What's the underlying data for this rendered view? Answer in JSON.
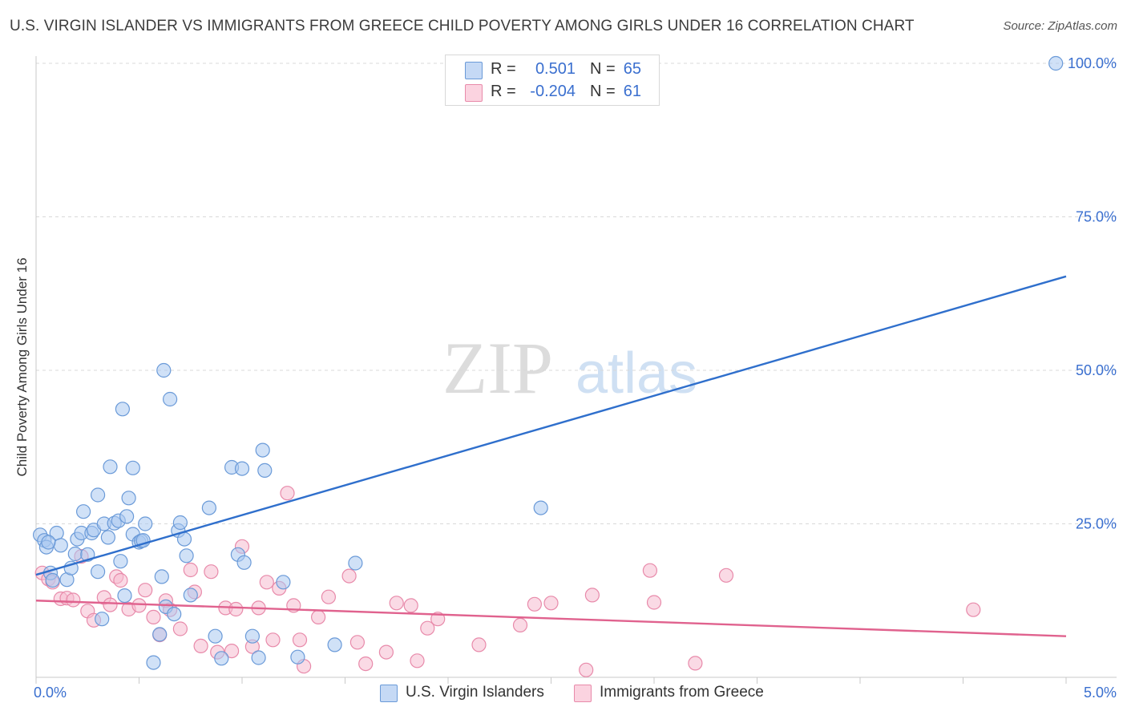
{
  "title": "U.S. VIRGIN ISLANDER VS IMMIGRANTS FROM GREECE CHILD POVERTY AMONG GIRLS UNDER 16 CORRELATION CHART",
  "source": "Source: ZipAtlas.com",
  "watermark": {
    "zip": "ZIP",
    "atlas": "atlas"
  },
  "colors": {
    "blue_fill": "#aac8f0",
    "blue_stroke": "#6a9ad8",
    "blue_line": "#2f6fcc",
    "pink_fill": "#f6bcd0",
    "pink_stroke": "#e88aaa",
    "pink_line": "#e0628e",
    "grid": "#d9d9d9",
    "axis_text": "#3a6fcf"
  },
  "legend": {
    "rows": [
      {
        "r_label": "R =",
        "r_value": "0.501",
        "n_label": "N =",
        "n_value": "65"
      },
      {
        "r_label": "R =",
        "r_value": "-0.204",
        "n_label": "N =",
        "n_value": "61"
      }
    ]
  },
  "bottom_legend": {
    "series1": "U.S. Virgin Islanders",
    "series2": "Immigrants from Greece"
  },
  "chart_data": {
    "type": "scatter",
    "title": "U.S. VIRGIN ISLANDER VS IMMIGRANTS FROM GREECE CHILD POVERTY AMONG GIRLS UNDER 16 CORRELATION CHART",
    "xlabel": "",
    "ylabel": "Child Poverty Among Girls Under 16",
    "xlim": [
      0,
      5
    ],
    "ylim": [
      0,
      102
    ],
    "x_tick_labels": [
      "0.0%",
      "5.0%"
    ],
    "y_ticks": [
      25,
      50,
      75,
      100
    ],
    "y_tick_labels": [
      "25.0%",
      "50.0%",
      "75.0%",
      "100.0%"
    ],
    "series": [
      {
        "name": "U.S. Virgin Islanders",
        "color": "blue",
        "trend": {
          "x": [
            0,
            5
          ],
          "y": [
            16.7,
            65.3
          ]
        },
        "points": [
          [
            0.02,
            23.2
          ],
          [
            0.04,
            22.3
          ],
          [
            0.05,
            21.2
          ],
          [
            0.07,
            17.0
          ],
          [
            0.08,
            15.8
          ],
          [
            0.1,
            23.5
          ],
          [
            0.12,
            21.5
          ],
          [
            0.15,
            15.9
          ],
          [
            0.17,
            17.8
          ],
          [
            0.19,
            20.1
          ],
          [
            0.2,
            22.5
          ],
          [
            0.22,
            23.5
          ],
          [
            0.23,
            27.0
          ],
          [
            0.25,
            20.0
          ],
          [
            0.27,
            23.5
          ],
          [
            0.28,
            24.0
          ],
          [
            0.3,
            29.7
          ],
          [
            0.3,
            17.2
          ],
          [
            0.32,
            9.5
          ],
          [
            0.33,
            25.0
          ],
          [
            0.35,
            22.8
          ],
          [
            0.36,
            34.3
          ],
          [
            0.38,
            25.1
          ],
          [
            0.4,
            25.5
          ],
          [
            0.41,
            18.9
          ],
          [
            0.42,
            43.7
          ],
          [
            0.43,
            13.3
          ],
          [
            0.44,
            26.2
          ],
          [
            0.45,
            29.2
          ],
          [
            0.47,
            34.1
          ],
          [
            0.47,
            23.3
          ],
          [
            0.5,
            22.0
          ],
          [
            0.51,
            22.2
          ],
          [
            0.53,
            25.0
          ],
          [
            0.57,
            2.4
          ],
          [
            0.6,
            7.0
          ],
          [
            0.61,
            16.4
          ],
          [
            0.62,
            50.0
          ],
          [
            0.63,
            11.5
          ],
          [
            0.65,
            45.3
          ],
          [
            0.67,
            10.3
          ],
          [
            0.69,
            23.9
          ],
          [
            0.7,
            25.2
          ],
          [
            0.72,
            22.5
          ],
          [
            0.73,
            19.8
          ],
          [
            0.75,
            13.4
          ],
          [
            0.84,
            27.6
          ],
          [
            0.87,
            6.7
          ],
          [
            0.9,
            3.1
          ],
          [
            0.95,
            34.2
          ],
          [
            0.98,
            20.0
          ],
          [
            1.0,
            34.0
          ],
          [
            1.01,
            18.7
          ],
          [
            1.05,
            6.7
          ],
          [
            1.08,
            3.2
          ],
          [
            1.1,
            37.0
          ],
          [
            1.11,
            33.7
          ],
          [
            1.2,
            15.5
          ],
          [
            1.27,
            3.3
          ],
          [
            1.45,
            5.3
          ],
          [
            1.55,
            18.6
          ],
          [
            2.45,
            27.6
          ],
          [
            4.95,
            100.0
          ],
          [
            0.06,
            22.0
          ],
          [
            0.52,
            22.3
          ]
        ]
      },
      {
        "name": "Immigrants from Greece",
        "color": "pink",
        "trend": {
          "x": [
            0,
            5
          ],
          "y": [
            12.5,
            6.7
          ]
        },
        "points": [
          [
            0.03,
            17.0
          ],
          [
            0.06,
            16.0
          ],
          [
            0.08,
            15.5
          ],
          [
            0.12,
            12.8
          ],
          [
            0.15,
            12.9
          ],
          [
            0.18,
            12.6
          ],
          [
            0.22,
            19.7
          ],
          [
            0.25,
            10.8
          ],
          [
            0.28,
            9.3
          ],
          [
            0.33,
            13.0
          ],
          [
            0.36,
            11.8
          ],
          [
            0.39,
            16.4
          ],
          [
            0.41,
            15.8
          ],
          [
            0.45,
            11.1
          ],
          [
            0.5,
            11.7
          ],
          [
            0.53,
            14.2
          ],
          [
            0.57,
            9.8
          ],
          [
            0.6,
            6.9
          ],
          [
            0.63,
            12.5
          ],
          [
            0.65,
            11.0
          ],
          [
            0.7,
            7.9
          ],
          [
            0.75,
            17.5
          ],
          [
            0.77,
            13.9
          ],
          [
            0.8,
            5.1
          ],
          [
            0.85,
            17.2
          ],
          [
            0.88,
            4.1
          ],
          [
            0.92,
            11.3
          ],
          [
            0.95,
            4.3
          ],
          [
            0.97,
            11.1
          ],
          [
            1.0,
            21.3
          ],
          [
            1.05,
            5.0
          ],
          [
            1.08,
            11.3
          ],
          [
            1.12,
            15.5
          ],
          [
            1.15,
            6.1
          ],
          [
            1.18,
            14.5
          ],
          [
            1.22,
            30.0
          ],
          [
            1.25,
            11.7
          ],
          [
            1.28,
            6.1
          ],
          [
            1.3,
            1.8
          ],
          [
            1.37,
            9.8
          ],
          [
            1.42,
            13.1
          ],
          [
            1.52,
            16.5
          ],
          [
            1.56,
            5.7
          ],
          [
            1.6,
            2.2
          ],
          [
            1.7,
            4.1
          ],
          [
            1.75,
            12.1
          ],
          [
            1.82,
            11.7
          ],
          [
            1.85,
            2.7
          ],
          [
            1.9,
            8.0
          ],
          [
            1.95,
            9.5
          ],
          [
            2.15,
            5.3
          ],
          [
            2.35,
            8.5
          ],
          [
            2.42,
            11.9
          ],
          [
            2.5,
            12.1
          ],
          [
            2.67,
            1.2
          ],
          [
            2.7,
            13.4
          ],
          [
            2.98,
            17.4
          ],
          [
            3.0,
            12.2
          ],
          [
            3.2,
            2.3
          ],
          [
            3.35,
            16.6
          ],
          [
            4.55,
            11.0
          ]
        ]
      }
    ]
  }
}
